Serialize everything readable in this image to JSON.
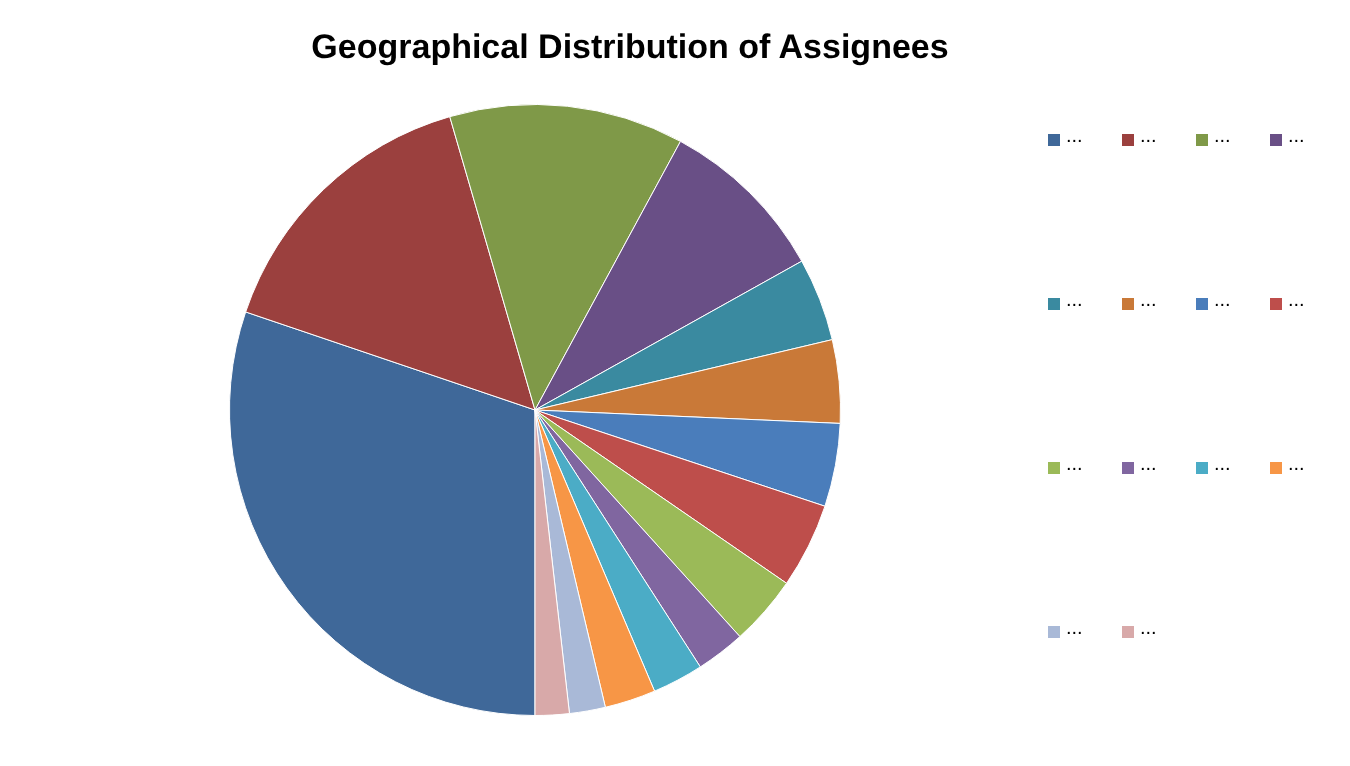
{
  "chart_data": {
    "type": "pie",
    "title": "Geographical Distribution of Assignees",
    "categories": [
      "...",
      "...",
      "...",
      "...",
      "...",
      "...",
      "...",
      "...",
      "...",
      "...",
      "...",
      "...",
      "...",
      "..."
    ],
    "values": [
      30.2,
      15.3,
      12.4,
      9.0,
      4.4,
      4.4,
      4.4,
      4.5,
      3.7,
      2.6,
      2.7,
      2.7,
      1.9,
      1.8
    ],
    "colors": [
      "#3f6899",
      "#9b403e",
      "#7f9948",
      "#694f86",
      "#3a8aa0",
      "#c97938",
      "#4a7dbb",
      "#be4e4b",
      "#9bba58",
      "#8066a0",
      "#4bacc6",
      "#f79646",
      "#a9b9d7",
      "#d8a9a9"
    ],
    "legend": "right"
  }
}
